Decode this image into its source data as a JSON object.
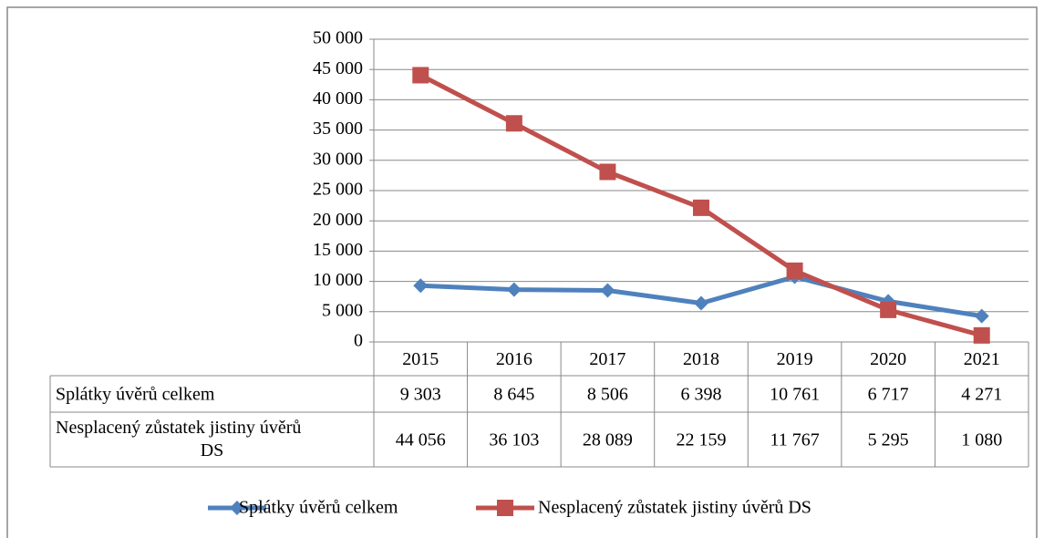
{
  "chart_data": {
    "type": "line",
    "categories": [
      "2015",
      "2016",
      "2017",
      "2018",
      "2019",
      "2020",
      "2021"
    ],
    "series": [
      {
        "name": "Splátky úvěrů celkem",
        "color": "#4f81bd",
        "marker": "diamond",
        "values": [
          9303,
          8645,
          8506,
          6398,
          10761,
          6717,
          4271
        ],
        "value_labels": [
          "9 303",
          "8 645",
          "8 506",
          "6 398",
          "10 761",
          "6 717",
          "4 271"
        ]
      },
      {
        "name": "Nesplacený zůstatek jistiny úvěrů DS",
        "color": "#c0504d",
        "marker": "square",
        "values": [
          44056,
          36103,
          28089,
          22159,
          11767,
          5295,
          1080
        ],
        "value_labels": [
          "44 056",
          "36 103",
          "28 089",
          "22 159",
          "11 767",
          "5 295",
          "1 080"
        ]
      }
    ],
    "ylim": [
      0,
      50000
    ],
    "yticks": [
      0,
      {
        "value": 5000,
        "label": "5 000"
      },
      {
        "value": 10000,
        "label": "10 000"
      },
      {
        "value": 15000,
        "label": "15 000"
      },
      {
        "value": 20000,
        "label": "20 000"
      },
      {
        "value": 25000,
        "label": "25 000"
      },
      {
        "value": 30000,
        "label": "30 000"
      },
      {
        "value": 35000,
        "label": "35 000"
      },
      {
        "value": 40000,
        "label": "40 000"
      },
      {
        "value": 45000,
        "label": "45 000"
      },
      {
        "value": 50000,
        "label": "50 000"
      }
    ],
    "grid": true,
    "legend": "bottom"
  }
}
